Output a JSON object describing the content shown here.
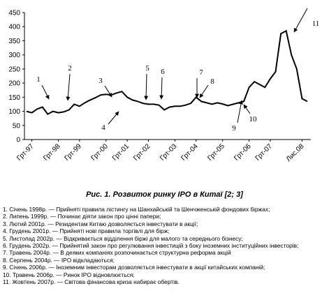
{
  "chart_data": {
    "type": "line",
    "caption": "Рис. 1. Розвиток ринку IPO в Китаї [2; 3]",
    "categories": [
      null,
      "Грт-97",
      null,
      null,
      null,
      null,
      "Грт-98",
      null,
      null,
      null,
      "Грт-99",
      null,
      null,
      null,
      null,
      "Грт-00",
      null,
      null,
      null,
      "Грт-01",
      null,
      null,
      null,
      "Грт-02",
      null,
      null,
      null,
      null,
      "Грт-03",
      null,
      null,
      null,
      "Грт-04",
      null,
      null,
      null,
      null,
      "Грт-05",
      null,
      null,
      null,
      null,
      "Грт-06",
      null,
      null,
      null,
      "Грт-07",
      null,
      null,
      null,
      null,
      null,
      "Лис.08",
      null
    ],
    "values": [
      100,
      95,
      108,
      115,
      90,
      100,
      95,
      98,
      105,
      125,
      118,
      130,
      140,
      148,
      158,
      160,
      158,
      165,
      170,
      150,
      140,
      135,
      128,
      125,
      125,
      122,
      105,
      115,
      118,
      118,
      122,
      128,
      150,
      135,
      130,
      125,
      130,
      126,
      120,
      125,
      130,
      135,
      185,
      205,
      195,
      185,
      215,
      240,
      375,
      385,
      300,
      250,
      145,
      135
    ],
    "color": "#000000",
    "ylim": [
      0,
      450
    ],
    "yticks": [
      0,
      50,
      100,
      150,
      200,
      250,
      300,
      350,
      400,
      450
    ],
    "annotations": [
      "1",
      "2",
      "3",
      "4",
      "5",
      "6",
      "7",
      "8",
      "9",
      "10",
      "11"
    ],
    "notes": [
      "1. Січень 1998р. — Прийняті правила лістингу на Шанхайській та Шенчженській фондових біржах;",
      "2. Липень 1999р. — Починає діяти закон про цінні папери;",
      "3. Лютий 2001р. — Резидентам Китаю дозволяється інвестувати в акції;",
      "4. Грудень 2001р. — Прийняті нові правила торгівлі для бірж;",
      "5. Листопад 2002р. — Відкривається відділення біржі для малого та середнього бізнесу;",
      "6. Грудень 2002р. — Прийнятий закон про регулювання інвестицій з боку іноземних інституційних інвесторів;",
      "7. Травень 2004р. — В деяких компаніях розпочинається структурна реформа акцій",
      "8. Серпень 2004р. — IPO відкладаються;",
      "9. Січень 2006р. — Іноземним інвесторам дозволяється інвестувати в акції китайських компаній;",
      "10. Травень 2006р. — Ринок IPO відновлюється;",
      "11. Жовтень 2007р. — Світова фінансова криза набирає обертів."
    ]
  }
}
